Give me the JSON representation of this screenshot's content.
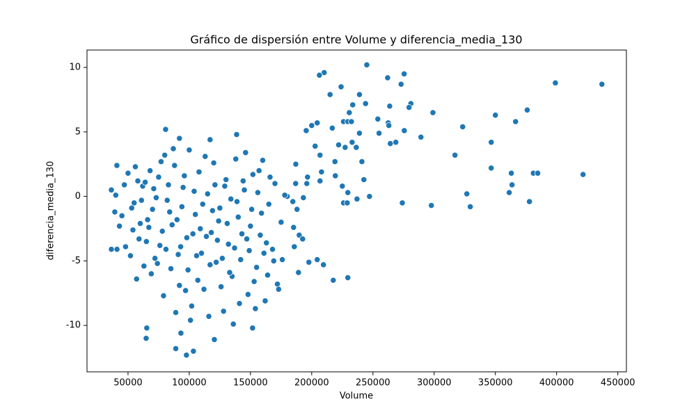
{
  "chart_data": {
    "type": "scatter",
    "title": "Gráfico de dispersión entre Volume y diferencia_media_130",
    "x_label": "Volume",
    "y_label": "diferencia_media_130",
    "color": "#1f77b4",
    "xlim": [
      16500,
      457000
    ],
    "ylim": [
      -13.6,
      11.35
    ],
    "xticks": [
      50000,
      100000,
      150000,
      200000,
      250000,
      300000,
      350000,
      400000,
      450000
    ],
    "yticks": [
      -10,
      -5,
      0,
      5,
      10
    ],
    "grid": false,
    "x": [
      245000,
      210200,
      206300,
      275500,
      262000,
      273000,
      399000,
      437000,
      224000,
      215000,
      239000,
      281000,
      279500,
      263700,
      233500,
      244000,
      299000,
      376000,
      230700,
      350000,
      366500,
      254000,
      226000,
      229500,
      232400,
      323300,
      262500,
      263000,
      204500,
      200000,
      216800,
      195500,
      275600,
      255000,
      239000,
      289200,
      268700,
      264200,
      346600,
      233000,
      236400,
      227300,
      222000,
      202800,
      317000,
      206800,
      219000,
      241000,
      346600,
      208000,
      363000,
      381000,
      384600,
      421600,
      242600,
      225000,
      219300,
      206800,
      363600,
      361300,
      326700,
      229500,
      247200,
      237000,
      226000,
      229000,
      274000,
      297700,
      329500,
      377800,
      193200,
      188000,
      180000,
      184600,
      185200,
      189800,
      192600,
      185800,
      197700,
      204500,
      209600,
      189200,
      217600,
      229500,
      196000,
      196600,
      186900,
      187000,
      65300,
      64800,
      80700,
      89000,
      97700,
      120500,
      103400,
      93200,
      151700,
      36400,
      41000,
      36400,
      39200,
      40900,
      138700,
      117000,
      92000,
      55000,
      58000,
      60000,
      62000,
      65000,
      68000,
      70000,
      72000,
      75000,
      78000,
      80000,
      82000,
      85000,
      88000,
      90000,
      92000,
      95000,
      98000,
      100000,
      102000,
      105000,
      108000,
      110000,
      112000,
      115000,
      118000,
      120000,
      122000,
      125000,
      128000,
      130000,
      132000,
      135000,
      138000,
      140000,
      142000,
      145000,
      148000,
      150000,
      152000,
      155000,
      158000,
      160000,
      162000,
      165000,
      168000,
      170000,
      172000,
      175000,
      178000,
      45000,
      48000,
      50000,
      52000,
      54000,
      57000,
      59000,
      63000,
      66000,
      69000,
      73000,
      76000,
      79000,
      83000,
      86000,
      89000,
      93000,
      96000,
      99000,
      101000,
      104000,
      107000,
      109000,
      113000,
      116000,
      119000,
      123000,
      126000,
      129000,
      133000,
      136000,
      139000,
      143000,
      146000,
      149000,
      153000,
      156000,
      159000,
      163000,
      166000,
      169000,
      173000,
      176000,
      40000,
      43000,
      47000,
      53000,
      56000,
      61000,
      64000,
      67000,
      71000,
      74000,
      77000,
      81000,
      84000,
      87000,
      91000,
      94000,
      97000,
      103000,
      106000,
      111000,
      114000,
      117000,
      121000,
      124000,
      127000,
      131000,
      134000,
      137000,
      141000,
      144000,
      147000,
      151000,
      154000,
      157000,
      161000,
      164000
    ],
    "y": [
      10.2,
      9.6,
      9.4,
      9.5,
      9.2,
      8.7,
      8.8,
      8.7,
      8.5,
      7.9,
      7.9,
      7.2,
      6.9,
      7.0,
      7.1,
      7.2,
      6.5,
      6.7,
      6.5,
      6.3,
      5.8,
      6.0,
      5.8,
      5.8,
      5.8,
      5.4,
      5.7,
      5.5,
      5.7,
      5.5,
      5.3,
      5.1,
      5.1,
      4.9,
      4.9,
      4.6,
      4.2,
      4.1,
      4.2,
      4.2,
      3.8,
      3.8,
      4.0,
      3.9,
      3.2,
      3.2,
      2.7,
      2.7,
      2.2,
      1.9,
      1.8,
      1.8,
      1.8,
      1.7,
      1.3,
      0.8,
      1.6,
      1.2,
      0.9,
      0.3,
      0.2,
      0.3,
      0,
      -0.2,
      -0.5,
      -0.5,
      -0.5,
      -0.7,
      -0.8,
      -0.4,
      -0.1,
      -1.0,
      0,
      -0.4,
      -2.4,
      -3.0,
      -3.3,
      -3.9,
      -5.1,
      -4.9,
      -5.3,
      -5.9,
      -6.5,
      -6.3,
      1.0,
      1.5,
      1.0,
      2.5,
      -10.2,
      -11.0,
      5.2,
      -11.8,
      -12.3,
      -11.1,
      -12.0,
      -10.6,
      -10.2,
      -4.1,
      -4.1,
      0.5,
      -1.2,
      2.4,
      4.8,
      4.4,
      4.5,
      -0.5,
      1.2,
      -2.1,
      0.8,
      -3.5,
      2.0,
      -1.0,
      -4.8,
      1.5,
      -2.7,
      3.2,
      -0.3,
      -5.6,
      2.4,
      -1.8,
      -6.9,
      0.7,
      -3.2,
      3.6,
      -8.5,
      -1.4,
      1.9,
      -4.4,
      -7.2,
      0.2,
      -2.8,
      2.6,
      -5.1,
      -0.9,
      -8.9,
      1.3,
      -3.7,
      -6.2,
      2.9,
      -1.6,
      -4.9,
      0.5,
      -7.6,
      -2.3,
      1.7,
      -5.5,
      -3.0,
      2.8,
      -8.1,
      -0.6,
      -4.1,
      1.0,
      -6.8,
      -2.0,
      0.1,
      -1.5,
      -3.9,
      1.8,
      -4.6,
      -2.6,
      -6.4,
      -3.3,
      -5.4,
      -1.8,
      -6.0,
      -0.1,
      -3.8,
      -7.7,
      0.9,
      -2.2,
      -9.0,
      -3.9,
      1.6,
      -5.7,
      -9.6,
      0.4,
      -6.5,
      -2.5,
      3.1,
      -9.3,
      -1.1,
      -3.4,
      -7.0,
      0.8,
      -5.9,
      -9.9,
      -0.4,
      -2.9,
      3.4,
      -4.2,
      -6.6,
      0.3,
      -1.3,
      -3.6,
      1.5,
      -5.0,
      -7.2,
      -4.9,
      0.1,
      -2.3,
      0.9,
      -0.9,
      2.3,
      -0.3,
      1.1,
      -2.4,
      0.6,
      -5.2,
      2.7,
      -4.1,
      -1.2,
      3.7,
      -4.5,
      -0.8,
      -7.3,
      -2.9,
      -4.6,
      -0.6,
      -3.1,
      -5.3,
      0.9,
      -1.9,
      -4.8,
      -2.1,
      -0.2,
      -4.0,
      -8.3,
      1.2,
      -3.3,
      -1.0,
      -8.7,
      2.0,
      -4.4,
      -6.1
    ]
  }
}
